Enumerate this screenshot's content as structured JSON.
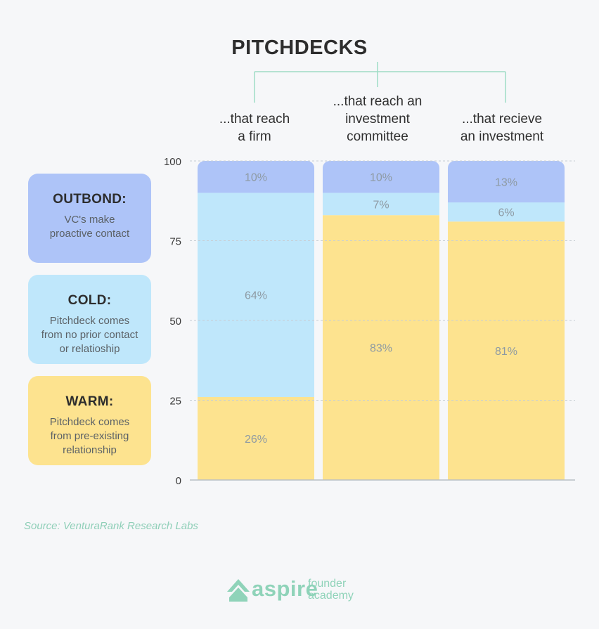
{
  "title": "PITCHDECKS",
  "columns": [
    {
      "label_line1": "...that reach",
      "label_line2": "a firm",
      "label_line3": ""
    },
    {
      "label_line1": "...that reach an",
      "label_line2": "investment",
      "label_line3": "committee"
    },
    {
      "label_line1": "...that recieve",
      "label_line2": "an investment",
      "label_line3": ""
    }
  ],
  "legend": [
    {
      "title": "OUTBOND:",
      "desc_line1": "VC's make",
      "desc_line2": "proactive contact",
      "desc_line3": "",
      "color": "#aec4f8"
    },
    {
      "title": "COLD:",
      "desc_line1": "Pitchdeck comes",
      "desc_line2": "from no prior contact",
      "desc_line3": "or relatioship",
      "color": "#bfe7fb"
    },
    {
      "title": "WARM:",
      "desc_line1": "Pitchdeck comes",
      "desc_line2": "from pre-existing",
      "desc_line3": "relationship",
      "color": "#fde38f"
    }
  ],
  "chart_data": {
    "type": "bar",
    "stacked": true,
    "categories": [
      "...that reach a firm",
      "...that reach an investment committee",
      "...that recieve an investment"
    ],
    "series": [
      {
        "name": "WARM",
        "values": [
          26,
          83,
          81
        ],
        "labels": [
          "26%",
          "83%",
          "81%"
        ],
        "color": "#fde38f"
      },
      {
        "name": "COLD",
        "values": [
          64,
          7,
          6
        ],
        "labels": [
          "64%",
          "7%",
          "6%"
        ],
        "color": "#bfe7fb"
      },
      {
        "name": "OUTBOND",
        "values": [
          10,
          10,
          13
        ],
        "labels": [
          "10%",
          "10%",
          "13%"
        ],
        "color": "#aec4f8"
      }
    ],
    "yticks": [
      "0",
      "25",
      "50",
      "75",
      "100"
    ],
    "ylim": [
      0,
      100
    ],
    "grid": true
  },
  "source": "Source: VenturaRank Research Labs",
  "logo": {
    "word": "aspire",
    "sub_line1": "founder",
    "sub_line2": "academy"
  },
  "colors": {
    "accent": "#8fd3b9",
    "text": "#2d2d2d",
    "label": "#8e9aa3"
  }
}
